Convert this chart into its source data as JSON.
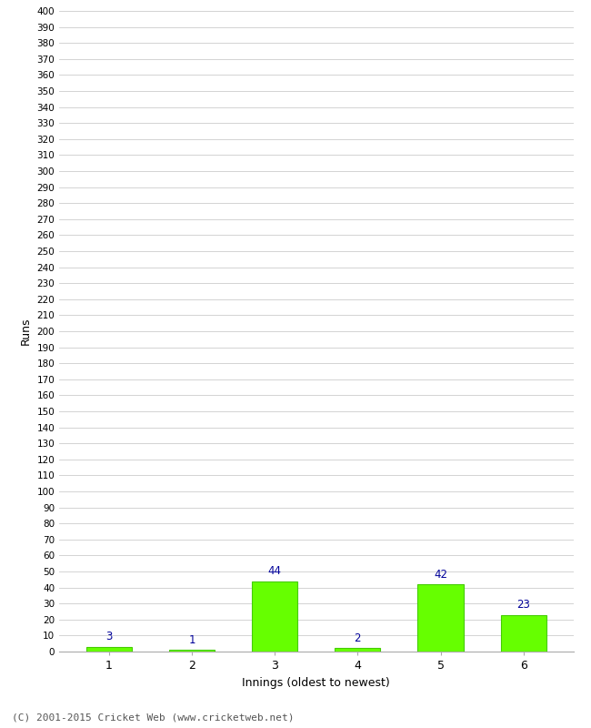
{
  "categories": [
    "1",
    "2",
    "3",
    "4",
    "5",
    "6"
  ],
  "values": [
    3,
    1,
    44,
    2,
    42,
    23
  ],
  "bar_color": "#66ff00",
  "bar_edge_color": "#44cc00",
  "annotation_color": "#000099",
  "xlabel": "Innings (oldest to newest)",
  "ylabel": "Runs",
  "ylim": [
    0,
    400
  ],
  "ytick_step": 10,
  "background_color": "#ffffff",
  "grid_color": "#cccccc",
  "footer": "(C) 2001-2015 Cricket Web (www.cricketweb.net)"
}
